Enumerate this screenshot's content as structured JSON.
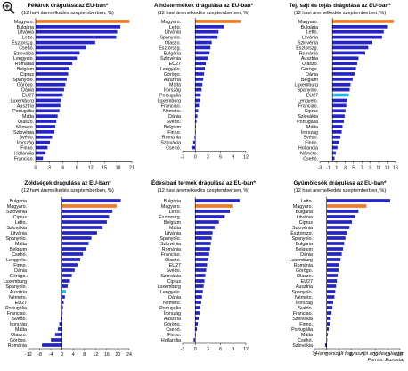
{
  "footer": {
    "note": "* Harmonizált fogyasztói árindex alapján",
    "source": "Forrás: Eurostat"
  },
  "colors": {
    "bar": "#2424c8",
    "hungary": "#f07a24",
    "eu27": "#29b8e6"
  },
  "chart_data": [
    {
      "type": "bar",
      "title": "Pékáruk drágulása az EU-ban*",
      "subtitle": "(12 havi áremelkedés szeptemberben, %)",
      "categories": [
        "Magyaro.",
        "Bulgária",
        "Litvánia",
        "Letto.",
        "Észtorszg.",
        "Csehó.",
        "Szlovákia",
        "Lengyelo.",
        "Románia",
        "Belgium",
        "Ciprus",
        "Spanyolo.",
        "Görögo.",
        "Dánia",
        "EU27",
        "Luxemburg",
        "Ausztria",
        "Portugália",
        "Málta",
        "Olaszo.",
        "Németo.",
        "Szlovénia",
        "Svédo.",
        "Írország",
        "Finno.",
        "Hollandia",
        "Franciao."
      ],
      "values": [
        20.5,
        18.5,
        17.8,
        17.6,
        13,
        11,
        9.6,
        9,
        8,
        7.4,
        7.1,
        6.8,
        6.5,
        6.2,
        5.9,
        5.6,
        5.4,
        5.2,
        4.8,
        4.5,
        4.3,
        4.1,
        3.6,
        3.1,
        2.6,
        2.1,
        1.6
      ],
      "highlight": {
        "Magyaro.": "hungary"
      },
      "xlim": [
        0,
        21
      ],
      "xticks": [
        0,
        3,
        6,
        9,
        12,
        15,
        18,
        21
      ]
    },
    {
      "type": "bar",
      "title": "A hústermékek drágulása az EU-ban*",
      "subtitle": "(12 havi áremelkedés szeptemberben, %)",
      "categories": [
        "Magyaro.",
        "Letto.",
        "Litvánia",
        "Spanyolo.",
        "Olaszo.",
        "Észtorszg.",
        "Bulgária",
        "Szlovénia",
        "EU27",
        "Lengyelo.",
        "Görögo.",
        "Ausztria",
        "Málta",
        "Írország",
        "Portugália",
        "Luxemburg",
        "Franciao.",
        "Németo.",
        "Dánia",
        "Svédo.",
        "Belgium",
        "Finno.",
        "Románia",
        "Szlovákia",
        "Csehó."
      ],
      "values": [
        10.8,
        6.8,
        5.5,
        5.3,
        3.9,
        3.6,
        3.4,
        3.1,
        2.5,
        2.3,
        2.1,
        1.9,
        1.7,
        1.5,
        1.3,
        1.1,
        0.9,
        0.7,
        0.5,
        0.3,
        0.15,
        0.05,
        -0.2,
        -0.5,
        -0.9
      ],
      "highlight": {
        "Magyaro.": "hungary"
      },
      "xlim": [
        -3,
        12
      ],
      "xticks": [
        -3,
        0,
        3,
        6,
        9,
        12
      ]
    },
    {
      "type": "bar",
      "title": "Tej, sajt és tojás drágulása az EU-ban*",
      "subtitle": "(12 havi áremelkedés szeptemberben, %)",
      "categories": [
        "Magyaro.",
        "Bulgária",
        "Letto.",
        "Litvánia",
        "Szlovénia",
        "Észtorszg.",
        "Románia",
        "Ausztria",
        "Olaszo.",
        "Görögo.",
        "Dánia",
        "Belgium",
        "Luxemburg",
        "Spanyolo.",
        "EU27",
        "Lengyelo.",
        "Franciao.",
        "Ciprus",
        "Szlovákia",
        "Portugália",
        "Málta",
        "Írország",
        "Svédo.",
        "Finno.",
        "Hollandia",
        "Németo.",
        "Csehó."
      ],
      "values": [
        14.6,
        13,
        12.2,
        11.8,
        9.5,
        8.5,
        7.8,
        6.2,
        5.9,
        5.6,
        5.3,
        4.8,
        4.3,
        4.1,
        3.9,
        3.5,
        3.3,
        3.1,
        2.9,
        2.7,
        2.4,
        2.2,
        1.9,
        1.6,
        1.2,
        0.8,
        0.5
      ],
      "highlight": {
        "Magyaro.": "hungary",
        "EU27": "eu27"
      },
      "xlim": [
        -3,
        15
      ],
      "xticks": [
        -3,
        -1,
        1,
        3,
        5,
        7,
        9,
        11,
        13,
        15
      ]
    },
    {
      "type": "bar",
      "title": "Zöldségek drágulása az EU-ban*",
      "subtitle": "(12 havi áremelkedés szeptemberben, %)",
      "categories": [
        "Bulgária",
        "Magyaro.",
        "Szlovénia",
        "Ciprus",
        "Letto.",
        "Szlovákia",
        "Litvánia",
        "Spanyolo.",
        "Málta",
        "Belgium",
        "Csehó.",
        "Lengyelo.",
        "Finno.",
        "Dánia",
        "Görögo.",
        "Luxemburg",
        "Spanyolo.",
        "Ausztria",
        "Németo.",
        "EU27",
        "Portugália",
        "Franciao.",
        "Svédo.",
        "Írország",
        "Málta",
        "Olaszo.",
        "Görögo.",
        "Románia"
      ],
      "values": [
        21,
        19.5,
        18,
        16.8,
        16,
        14.5,
        12.5,
        10.5,
        9.5,
        8.5,
        7.5,
        6.5,
        5.5,
        4.5,
        3.5,
        2.8,
        2,
        1.4,
        1,
        0.6,
        0.3,
        0.1,
        -0.5,
        -1,
        -1.5,
        -2.5,
        -4,
        -7.2
      ],
      "highlight": {
        "Magyaro.": "hungary",
        "Ausztria": "eu27"
      },
      "xlim": [
        -12,
        24
      ],
      "xticks": [
        -12,
        -8,
        -4,
        0,
        4,
        8,
        12,
        16,
        20,
        24
      ]
    },
    {
      "type": "bar",
      "title": "Édesipari termék drágulása az EU-ban*",
      "subtitle": "(12 havi áremelkedés szeptemberben, %)",
      "categories": [
        "Bulgária",
        "Magyaro.",
        "Letto.",
        "Észtorszg.",
        "Belgium",
        "Málta",
        "Litvánia",
        "Spanyolo.",
        "Szlovénia",
        "Románia",
        "Franciao.",
        "Olaszo.",
        "EU27",
        "Svédo.",
        "Szlovákia",
        "Ciprus",
        "Luxemburg",
        "Lengyelo.",
        "Dánia",
        "Németo.",
        "Portugália",
        "Írország",
        "Ausztria",
        "Görögo.",
        "Csehó.",
        "Finno.",
        "Hollandia"
      ],
      "values": [
        10.5,
        8.8,
        8.2,
        7,
        5.6,
        4.6,
        4.1,
        3.9,
        3.7,
        3.5,
        3.3,
        3.1,
        2.8,
        2.6,
        2.4,
        2.2,
        2,
        1.8,
        1.6,
        1.4,
        1.2,
        1,
        0.8,
        0.6,
        0.4,
        0.1,
        -0.4
      ],
      "highlight": {
        "Magyaro.": "hungary"
      },
      "xlim": [
        -3,
        12
      ],
      "xticks": [
        -3,
        0,
        3,
        6,
        9,
        12
      ]
    },
    {
      "type": "bar",
      "title": "Gyümölcsök drágulása az EU-ban*",
      "subtitle": "(12 havi áremelkedés szeptemberben, %)",
      "categories": [
        "Letto.",
        "Magyaro.",
        "Bulgária",
        "Litvánia",
        "Ciprus",
        "Szlovénia",
        "Észtorszg.",
        "Spanyolo.",
        "Bulgária",
        "Belgium",
        "Dánia",
        "Luxemburg",
        "Románia",
        "Görögo.",
        "Olaszo.",
        "EU27",
        "Ausztria",
        "Spanyolo.",
        "Németo.",
        "Írország",
        "Svédo.",
        "Franciao.",
        "Szlovákia",
        "Finno.",
        "Portugália",
        "Málta",
        "Csehó.",
        "Szlovákia"
      ],
      "values": [
        15.6,
        9.8,
        7.8,
        7,
        6.2,
        5.6,
        5.1,
        4.6,
        4.3,
        4,
        3.7,
        3.4,
        3.1,
        2.9,
        2.7,
        2.5,
        2.3,
        2.1,
        1.9,
        1.6,
        1.4,
        1.2,
        1,
        0.8,
        0.5,
        0.3,
        0.1,
        -0.4
      ],
      "highlight": {
        "Magyaro.": "hungary"
      },
      "xlim": [
        -3,
        18
      ],
      "xticks": [
        -3,
        0,
        3,
        6,
        9,
        12,
        15,
        18
      ]
    }
  ]
}
